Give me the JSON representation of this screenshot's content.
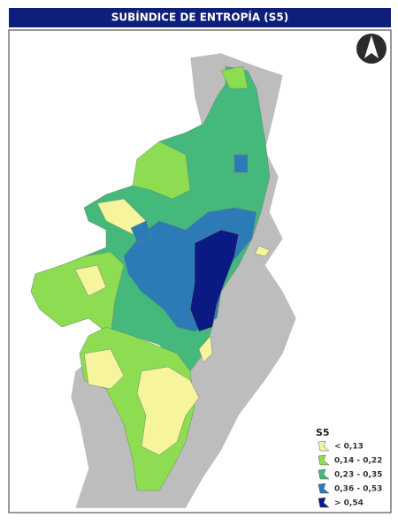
{
  "header": {
    "title": "SUBÍNDICE DE ENTROPÍA (S5)"
  },
  "legend": {
    "title": "S5",
    "items": [
      {
        "label": "< 0,13",
        "color": "#f6f49c"
      },
      {
        "label": "0,14 - 0,22",
        "color": "#8edc52"
      },
      {
        "label": "0,23 - 0,35",
        "color": "#45b87c"
      },
      {
        "label": "0,36 - 0,53",
        "color": "#2c7bb6"
      },
      {
        "label": "> 0,54",
        "color": "#0b1a82"
      }
    ]
  }
}
